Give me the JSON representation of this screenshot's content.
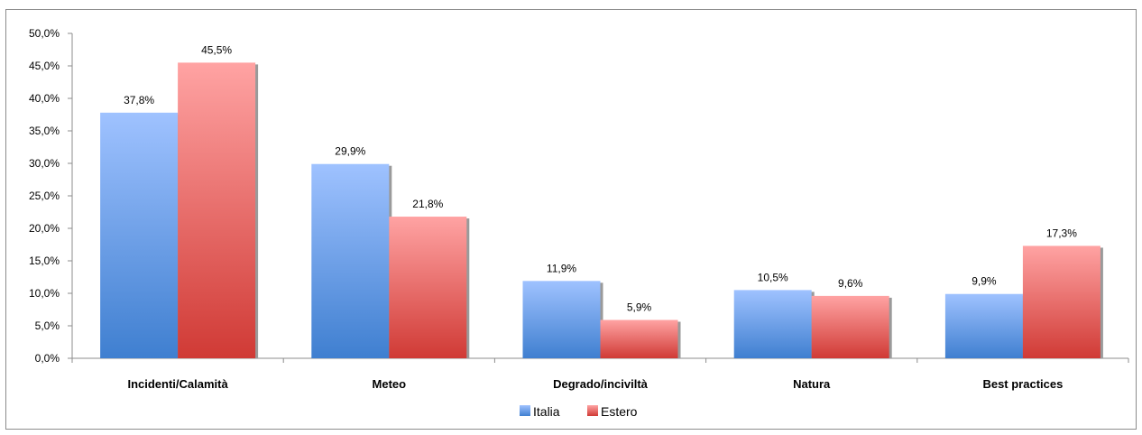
{
  "chart_data": {
    "type": "bar",
    "categories": [
      "Incidenti/Calamità",
      "Meteo",
      "Degrado/inciviltà",
      "Natura",
      "Best practices"
    ],
    "series": [
      {
        "name": "Italia",
        "values": [
          37.8,
          29.9,
          11.9,
          10.5,
          9.9
        ],
        "labels": [
          "37,8%",
          "29,9%",
          "11,9%",
          "10,5%",
          "9,9%"
        ],
        "color_top": "#9fc2ff",
        "color_bottom": "#3f7fd0"
      },
      {
        "name": "Estero",
        "values": [
          45.5,
          21.8,
          5.9,
          9.6,
          17.3
        ],
        "labels": [
          "45,5%",
          "21,8%",
          "5,9%",
          "9,6%",
          "17,3%"
        ],
        "color_top": "#ffa3a3",
        "color_bottom": "#d03a35"
      }
    ],
    "y_ticks": [
      "0,0%",
      "5,0%",
      "10,0%",
      "15,0%",
      "20,0%",
      "25,0%",
      "30,0%",
      "35,0%",
      "40,0%",
      "45,0%",
      "50,0%"
    ],
    "ylim": [
      0,
      50
    ],
    "grid": false,
    "legend_position": "bottom"
  }
}
